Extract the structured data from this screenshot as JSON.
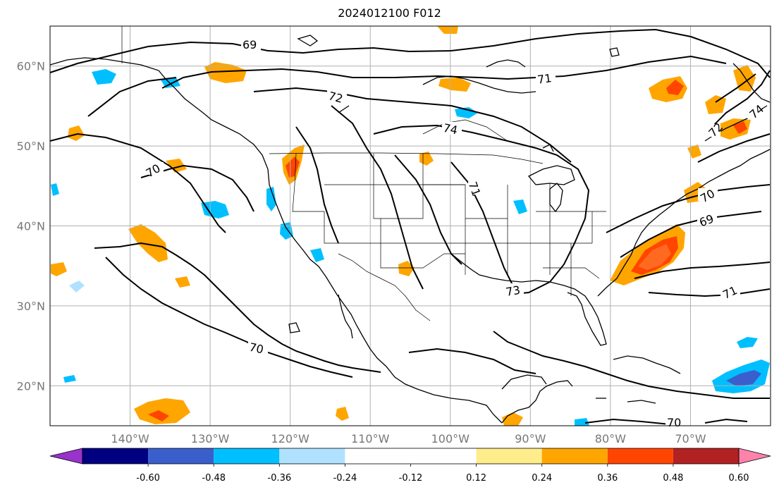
{
  "title": "2024012100 F012",
  "map": {
    "lat_labels": [
      {
        "value": 60,
        "text": "60°N"
      },
      {
        "value": 50,
        "text": "50°N"
      },
      {
        "value": 40,
        "text": "40°N"
      },
      {
        "value": 30,
        "text": "30°N"
      },
      {
        "value": 20,
        "text": "20°N"
      }
    ],
    "lon_labels": [
      {
        "value": -140,
        "text": "140°W"
      },
      {
        "value": -130,
        "text": "130°W"
      },
      {
        "value": -120,
        "text": "120°W"
      },
      {
        "value": -110,
        "text": "110°W"
      },
      {
        "value": -100,
        "text": "100°W"
      },
      {
        "value": -90,
        "text": "90°W"
      },
      {
        "value": -80,
        "text": "80°W"
      },
      {
        "value": -70,
        "text": "70°W"
      }
    ],
    "lon_range": [
      -150,
      -60
    ],
    "lat_range": [
      15,
      65
    ],
    "contour_labels": [
      "69",
      "71",
      "72",
      "74",
      "70",
      "71",
      "73",
      "70",
      "69",
      "71",
      "70",
      "74",
      "72",
      "70"
    ]
  },
  "colorbar": {
    "colors": [
      "#9933cc",
      "#000080",
      "#3a5fcd",
      "#00bfff",
      "#b0e2ff",
      "#ffffff",
      "#ffffff",
      "#ffec8b",
      "#ffa500",
      "#ff4500",
      "#b22222",
      "#ff82ab"
    ],
    "labels": [
      "-0.60",
      "-0.48",
      "-0.36",
      "-0.24",
      "-0.12",
      "0.12",
      "0.24",
      "0.36",
      "0.48",
      "0.60"
    ]
  }
}
